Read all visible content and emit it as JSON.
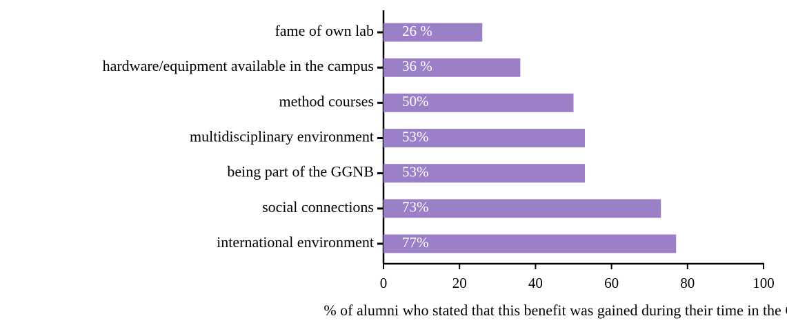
{
  "chart_data": {
    "type": "barh",
    "xlabel": "% of alumni who stated that this benefit was gained during their time in the GGNB",
    "categories": [
      "fame of own lab",
      "hardware/equipment available in the campus",
      "method courses",
      "multidisciplinary environment",
      "being part of the GGNB",
      "social connections",
      "international environment"
    ],
    "values": [
      26,
      36,
      50,
      53,
      53,
      73,
      77
    ],
    "value_labels": [
      "26 %",
      "36 %",
      "50%",
      "53%",
      "53%",
      "73%",
      "77%"
    ],
    "color": "#9b80c8",
    "xlim": [
      0,
      100
    ],
    "xticks": [
      0,
      20,
      40,
      60,
      80,
      100
    ]
  }
}
